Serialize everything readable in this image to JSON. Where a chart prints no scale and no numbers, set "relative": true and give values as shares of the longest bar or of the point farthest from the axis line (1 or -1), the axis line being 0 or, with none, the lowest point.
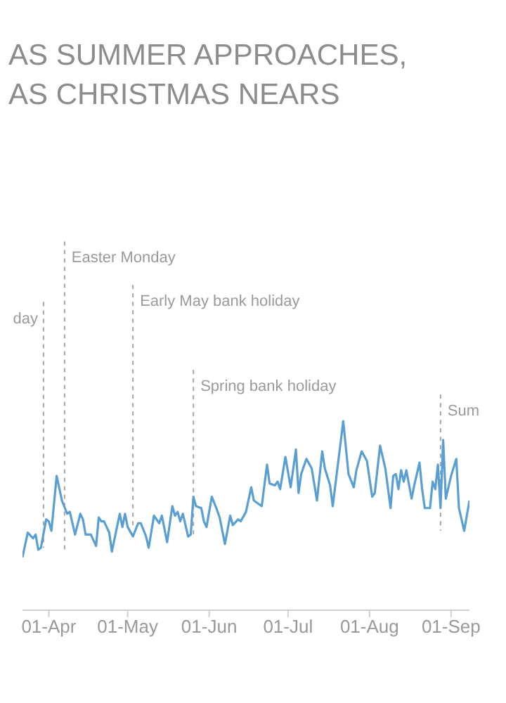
{
  "chart_data": {
    "type": "line",
    "title": "AS SUMMER APPROACHES,\nAS CHRISTMAS NEARS",
    "relative": true,
    "xlim": [
      "--03-22",
      "--09-08"
    ],
    "xticks": [
      {
        "value": "--04-01",
        "label": "01-Apr"
      },
      {
        "value": "--05-01",
        "label": "01-May"
      },
      {
        "value": "--06-01",
        "label": "01-Jun"
      },
      {
        "value": "--07-01",
        "label": "01-Jul"
      },
      {
        "value": "--08-01",
        "label": "01-Aug"
      },
      {
        "value": "--09-01",
        "label": "01-Sep"
      }
    ],
    "x": [
      "--03-22",
      "--03-24",
      "--03-26",
      "--03-27",
      "--03-28",
      "--03-29",
      "--03-31",
      "--04-01",
      "--04-02",
      "--04-04",
      "--04-06",
      "--04-08",
      "--04-09",
      "--04-11",
      "--04-13",
      "--04-14",
      "--04-15",
      "--04-17",
      "--04-19",
      "--04-20",
      "--04-21",
      "--04-22",
      "--04-24",
      "--04-25",
      "--04-28",
      "--04-29",
      "--04-30",
      "--05-01",
      "--05-03",
      "--05-05",
      "--05-06",
      "--05-08",
      "--05-09",
      "--05-11",
      "--05-13",
      "--05-14",
      "--05-16",
      "--05-18",
      "--05-19",
      "--05-20",
      "--05-21",
      "--05-22",
      "--05-24",
      "--05-25",
      "--05-26",
      "--05-27",
      "--05-29",
      "--05-30",
      "--05-31",
      "--06-02",
      "--06-04",
      "--06-05",
      "--06-07",
      "--06-09",
      "--06-10",
      "--06-12",
      "--06-13",
      "--06-15",
      "--06-17",
      "--06-18",
      "--06-21",
      "--06-23",
      "--06-24",
      "--06-26",
      "--06-27",
      "--06-28",
      "--06-30",
      "--07-02",
      "--07-04",
      "--07-05",
      "--07-06",
      "--07-08",
      "--07-10",
      "--07-12",
      "--07-14",
      "--07-15",
      "--07-17",
      "--07-18",
      "--07-22",
      "--07-24",
      "--07-26",
      "--07-27",
      "--07-29",
      "--07-31",
      "--08-02",
      "--08-03",
      "--08-05",
      "--08-07",
      "--08-09",
      "--08-10",
      "--08-11",
      "--08-12",
      "--08-13",
      "--08-14",
      "--08-15",
      "--08-17",
      "--08-18",
      "--08-20",
      "--08-21",
      "--08-22",
      "--08-24",
      "--08-25",
      "--08-26",
      "--08-27",
      "--08-28",
      "--08-29",
      "--08-30",
      "--09-01",
      "--09-03",
      "--09-04",
      "--09-06",
      "--09-08"
    ],
    "series": [
      {
        "color": "#5a9fd4",
        "values": [
          0.28,
          0.41,
          0.38,
          0.4,
          0.32,
          0.33,
          0.48,
          0.47,
          0.42,
          0.71,
          0.58,
          0.51,
          0.52,
          0.4,
          0.51,
          0.48,
          0.4,
          0.4,
          0.34,
          0.49,
          0.47,
          0.47,
          0.41,
          0.31,
          0.51,
          0.44,
          0.51,
          0.44,
          0.39,
          0.46,
          0.46,
          0.39,
          0.33,
          0.5,
          0.46,
          0.5,
          0.36,
          0.55,
          0.5,
          0.52,
          0.47,
          0.51,
          0.39,
          0.4,
          0.6,
          0.55,
          0.54,
          0.47,
          0.44,
          0.6,
          0.53,
          0.49,
          0.35,
          0.5,
          0.45,
          0.48,
          0.47,
          0.52,
          0.65,
          0.58,
          0.55,
          0.77,
          0.67,
          0.66,
          0.68,
          0.64,
          0.81,
          0.65,
          0.85,
          0.62,
          0.72,
          0.8,
          0.75,
          0.58,
          0.84,
          0.75,
          0.66,
          0.55,
          1.0,
          0.72,
          0.65,
          0.74,
          0.84,
          0.79,
          0.6,
          0.62,
          0.87,
          0.75,
          0.54,
          0.71,
          0.72,
          0.64,
          0.74,
          0.68,
          0.74,
          0.59,
          0.66,
          0.78,
          0.64,
          0.54,
          0.54,
          0.68,
          0.64,
          0.77,
          0.54,
          0.9,
          0.59,
          0.71,
          0.8,
          0.54,
          0.42,
          0.58
        ]
      }
    ],
    "ref_lines": [
      {
        "axis": "x",
        "value": "--03-30",
        "label": "day",
        "color": "#a6a6a6",
        "line_style": "dashed"
      },
      {
        "axis": "x",
        "value": "--04-07",
        "label": "Easter Monday",
        "color": "#a6a6a6",
        "line_style": "dashed"
      },
      {
        "axis": "x",
        "value": "--05-03",
        "label": "Early May bank holiday",
        "color": "#a6a6a6",
        "line_style": "dashed"
      },
      {
        "axis": "x",
        "value": "--05-26",
        "label": "Spring bank holiday",
        "color": "#a6a6a6",
        "line_style": "dashed"
      },
      {
        "axis": "x",
        "value": "--08-28",
        "label": "Sum",
        "color": "#a6a6a6",
        "line_style": "dashed"
      }
    ]
  }
}
